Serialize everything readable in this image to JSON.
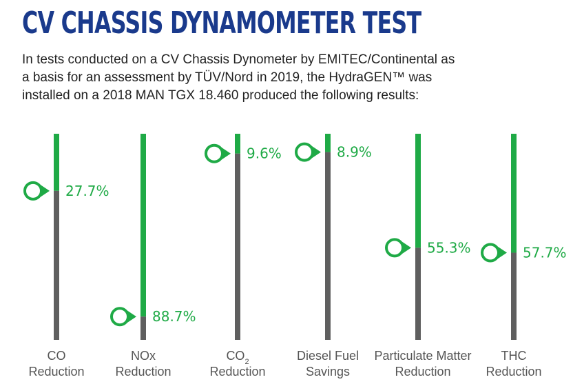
{
  "header": {
    "title": "CV CHASSIS DYNAMOMETER TEST",
    "intro_lines": [
      "In tests conducted on a CV Chassis Dynometer by EMITEC/Continental as",
      "a basis for an assessment by TÜV/Nord in 2019, the HydraGEN™ was",
      "installed on a 2018 MAN TGX 18.460 produced the following results:"
    ]
  },
  "colors": {
    "title": "#1a3a8c",
    "green": "#1faa46",
    "gray": "#5f5f5f",
    "label": "#555555"
  },
  "chart_data": {
    "type": "bar",
    "orientation": "vertical",
    "ylim": [
      0,
      100
    ],
    "categories": [
      [
        "CO",
        "Reduction"
      ],
      [
        "NOx",
        "Reduction"
      ],
      [
        "CO2",
        "Reduction"
      ],
      [
        "Diesel Fuel",
        "Savings"
      ],
      [
        "Particulate Matter",
        "Reduction"
      ],
      [
        "THC",
        "Reduction"
      ]
    ],
    "values": [
      27.7,
      88.7,
      9.6,
      8.9,
      55.3,
      57.7
    ],
    "value_labels": [
      "27.7%",
      "88.7%",
      "9.6%",
      "8.9%",
      "55.3%",
      "57.7%"
    ],
    "marker_icon": "circle-pointer-icon"
  }
}
